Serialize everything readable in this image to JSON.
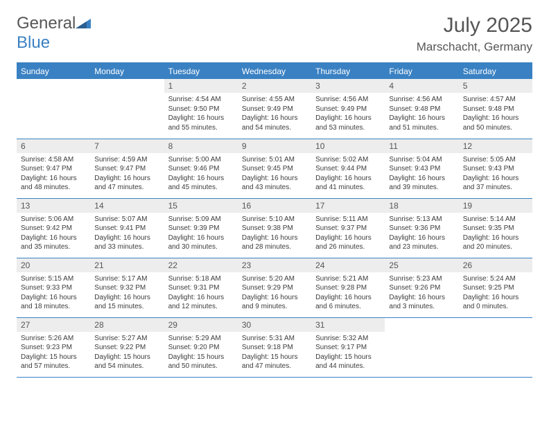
{
  "logo": {
    "word1": "General",
    "word2": "Blue"
  },
  "title": "July 2025",
  "location": "Marschacht, Germany",
  "colors": {
    "header_bg": "#3a81c3",
    "header_text": "#ffffff",
    "daynum_bg": "#ededed",
    "border": "#3a81c3",
    "body_text": "#333333"
  },
  "weekdays": [
    "Sunday",
    "Monday",
    "Tuesday",
    "Wednesday",
    "Thursday",
    "Friday",
    "Saturday"
  ],
  "layout": {
    "first_weekday_index": 2,
    "days_in_month": 31,
    "rows": 5,
    "cols": 7
  },
  "days": {
    "1": {
      "sunrise": "4:54 AM",
      "sunset": "9:50 PM",
      "daylight": "16 hours and 55 minutes."
    },
    "2": {
      "sunrise": "4:55 AM",
      "sunset": "9:49 PM",
      "daylight": "16 hours and 54 minutes."
    },
    "3": {
      "sunrise": "4:56 AM",
      "sunset": "9:49 PM",
      "daylight": "16 hours and 53 minutes."
    },
    "4": {
      "sunrise": "4:56 AM",
      "sunset": "9:48 PM",
      "daylight": "16 hours and 51 minutes."
    },
    "5": {
      "sunrise": "4:57 AM",
      "sunset": "9:48 PM",
      "daylight": "16 hours and 50 minutes."
    },
    "6": {
      "sunrise": "4:58 AM",
      "sunset": "9:47 PM",
      "daylight": "16 hours and 48 minutes."
    },
    "7": {
      "sunrise": "4:59 AM",
      "sunset": "9:47 PM",
      "daylight": "16 hours and 47 minutes."
    },
    "8": {
      "sunrise": "5:00 AM",
      "sunset": "9:46 PM",
      "daylight": "16 hours and 45 minutes."
    },
    "9": {
      "sunrise": "5:01 AM",
      "sunset": "9:45 PM",
      "daylight": "16 hours and 43 minutes."
    },
    "10": {
      "sunrise": "5:02 AM",
      "sunset": "9:44 PM",
      "daylight": "16 hours and 41 minutes."
    },
    "11": {
      "sunrise": "5:04 AM",
      "sunset": "9:43 PM",
      "daylight": "16 hours and 39 minutes."
    },
    "12": {
      "sunrise": "5:05 AM",
      "sunset": "9:43 PM",
      "daylight": "16 hours and 37 minutes."
    },
    "13": {
      "sunrise": "5:06 AM",
      "sunset": "9:42 PM",
      "daylight": "16 hours and 35 minutes."
    },
    "14": {
      "sunrise": "5:07 AM",
      "sunset": "9:41 PM",
      "daylight": "16 hours and 33 minutes."
    },
    "15": {
      "sunrise": "5:09 AM",
      "sunset": "9:39 PM",
      "daylight": "16 hours and 30 minutes."
    },
    "16": {
      "sunrise": "5:10 AM",
      "sunset": "9:38 PM",
      "daylight": "16 hours and 28 minutes."
    },
    "17": {
      "sunrise": "5:11 AM",
      "sunset": "9:37 PM",
      "daylight": "16 hours and 26 minutes."
    },
    "18": {
      "sunrise": "5:13 AM",
      "sunset": "9:36 PM",
      "daylight": "16 hours and 23 minutes."
    },
    "19": {
      "sunrise": "5:14 AM",
      "sunset": "9:35 PM",
      "daylight": "16 hours and 20 minutes."
    },
    "20": {
      "sunrise": "5:15 AM",
      "sunset": "9:33 PM",
      "daylight": "16 hours and 18 minutes."
    },
    "21": {
      "sunrise": "5:17 AM",
      "sunset": "9:32 PM",
      "daylight": "16 hours and 15 minutes."
    },
    "22": {
      "sunrise": "5:18 AM",
      "sunset": "9:31 PM",
      "daylight": "16 hours and 12 minutes."
    },
    "23": {
      "sunrise": "5:20 AM",
      "sunset": "9:29 PM",
      "daylight": "16 hours and 9 minutes."
    },
    "24": {
      "sunrise": "5:21 AM",
      "sunset": "9:28 PM",
      "daylight": "16 hours and 6 minutes."
    },
    "25": {
      "sunrise": "5:23 AM",
      "sunset": "9:26 PM",
      "daylight": "16 hours and 3 minutes."
    },
    "26": {
      "sunrise": "5:24 AM",
      "sunset": "9:25 PM",
      "daylight": "16 hours and 0 minutes."
    },
    "27": {
      "sunrise": "5:26 AM",
      "sunset": "9:23 PM",
      "daylight": "15 hours and 57 minutes."
    },
    "28": {
      "sunrise": "5:27 AM",
      "sunset": "9:22 PM",
      "daylight": "15 hours and 54 minutes."
    },
    "29": {
      "sunrise": "5:29 AM",
      "sunset": "9:20 PM",
      "daylight": "15 hours and 50 minutes."
    },
    "30": {
      "sunrise": "5:31 AM",
      "sunset": "9:18 PM",
      "daylight": "15 hours and 47 minutes."
    },
    "31": {
      "sunrise": "5:32 AM",
      "sunset": "9:17 PM",
      "daylight": "15 hours and 44 minutes."
    }
  },
  "labels": {
    "sunrise": "Sunrise:",
    "sunset": "Sunset:",
    "daylight": "Daylight:"
  }
}
